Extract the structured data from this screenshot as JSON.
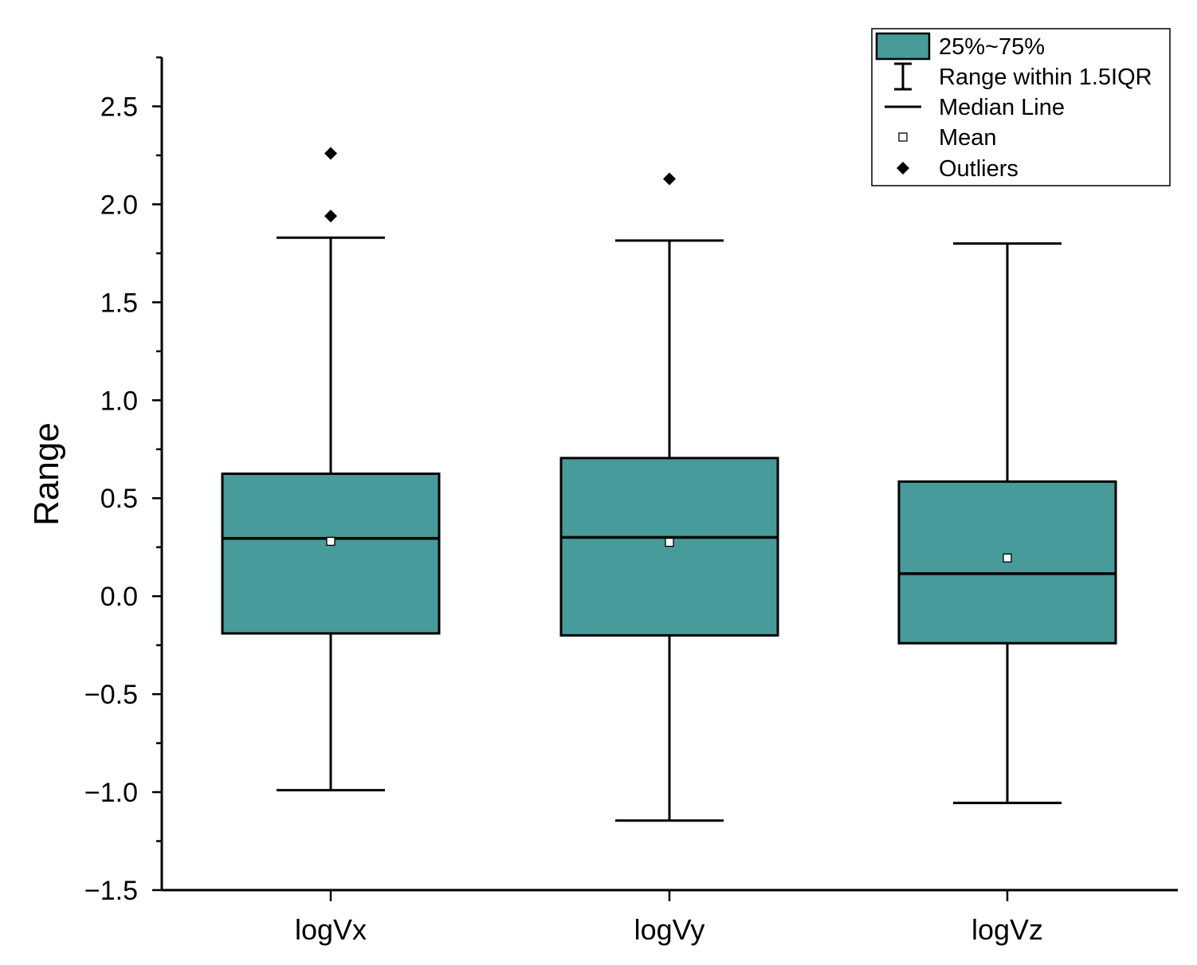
{
  "chart_data": {
    "type": "boxplot",
    "categories": [
      "logVx",
      "logVy",
      "logVz"
    ],
    "ylabel": "Range",
    "xlabel": "",
    "ylim": [
      -1.5,
      2.75
    ],
    "yticks": [
      -1.5,
      -1.0,
      -0.5,
      0.0,
      0.5,
      1.0,
      1.5,
      2.0,
      2.5
    ],
    "ytick_labels": [
      "−1.5",
      "−1.0",
      "−0.5",
      "0.0",
      "0.5",
      "1.0",
      "1.5",
      "2.0",
      "2.5"
    ],
    "box_color": "#479b9a",
    "boxes": [
      {
        "category": "logVx",
        "q1": -0.19,
        "median": 0.295,
        "q3": 0.625,
        "mean": 0.28,
        "whisker_low": -0.99,
        "whisker_high": 1.83,
        "outliers": [
          1.94,
          2.26
        ]
      },
      {
        "category": "logVy",
        "q1": -0.2,
        "median": 0.3,
        "q3": 0.705,
        "mean": 0.275,
        "whisker_low": -1.145,
        "whisker_high": 1.815,
        "outliers": [
          2.13
        ]
      },
      {
        "category": "logVz",
        "q1": -0.24,
        "median": 0.115,
        "q3": 0.585,
        "mean": 0.195,
        "whisker_low": -1.055,
        "whisker_high": 1.8,
        "outliers": []
      }
    ],
    "grid": false,
    "legend": {
      "placement": "top-right",
      "entries": [
        {
          "symbol": "box",
          "label": "25%~75%"
        },
        {
          "symbol": "whisker",
          "label": "Range within 1.5IQR"
        },
        {
          "symbol": "line",
          "label": "Median Line"
        },
        {
          "symbol": "square",
          "label": "Mean"
        },
        {
          "symbol": "diamond",
          "label": "Outliers"
        }
      ]
    }
  }
}
